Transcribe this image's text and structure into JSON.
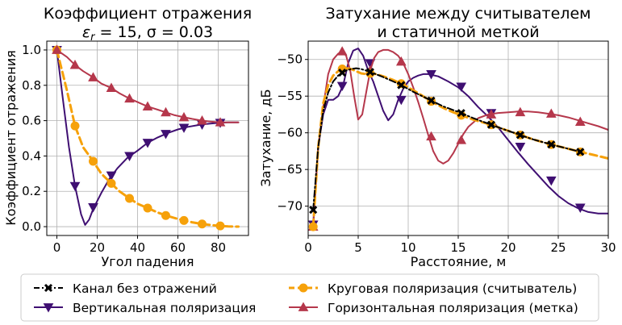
{
  "chart_data": [
    {
      "type": "line",
      "title_line1": "Коэффициент отражения",
      "title_line2_prefix": "ε",
      "title_line2_sub": "r",
      "title_line2_rest": " = 15, σ = 0.03",
      "xlabel": "Угол падения",
      "ylabel": "Коэффициент отражения",
      "xlim": [
        -5,
        95
      ],
      "ylim": [
        -0.05,
        1.05
      ],
      "xticks": [
        0,
        20,
        40,
        60,
        80
      ],
      "yticks": [
        0.0,
        0.2,
        0.4,
        0.6,
        0.8,
        1.0
      ],
      "ytick_labels": [
        "0.0",
        "0.2",
        "0.4",
        "0.6",
        "0.8",
        "1.0"
      ],
      "grid": true,
      "series": [
        {
          "key": "vertical",
          "color": "#3f0f72",
          "style": "solid",
          "marker": "triangle-down",
          "x": [
            0,
            3,
            6,
            9,
            12,
            14,
            16,
            18,
            22,
            26,
            30,
            35,
            40,
            45,
            50,
            55,
            60,
            65,
            70,
            75,
            80,
            85,
            90
          ],
          "y": [
            1.0,
            0.72,
            0.45,
            0.23,
            0.07,
            0.01,
            0.04,
            0.1,
            0.19,
            0.27,
            0.33,
            0.39,
            0.43,
            0.475,
            0.505,
            0.53,
            0.55,
            0.565,
            0.575,
            0.582,
            0.587,
            0.59,
            0.59
          ],
          "markers_x": [
            0,
            9,
            18,
            27,
            36,
            45,
            54,
            63,
            72,
            81
          ],
          "markers_y": [
            1.0,
            0.23,
            0.11,
            0.29,
            0.4,
            0.475,
            0.525,
            0.56,
            0.578,
            0.588
          ]
        },
        {
          "key": "circular",
          "color": "#f6a10a",
          "style": "dashed",
          "marker": "circle",
          "x": [
            0,
            5,
            9,
            13,
            18,
            22,
            27,
            31,
            36,
            40,
            45,
            50,
            54,
            58,
            63,
            67,
            72,
            76,
            81,
            85,
            90
          ],
          "y": [
            1.0,
            0.77,
            0.57,
            0.45,
            0.37,
            0.3,
            0.245,
            0.2,
            0.16,
            0.13,
            0.105,
            0.08,
            0.063,
            0.05,
            0.035,
            0.025,
            0.015,
            0.01,
            0.004,
            0.001,
            0.0
          ],
          "markers_x": [
            0,
            9,
            18,
            27,
            36,
            45,
            54,
            63,
            72,
            81
          ],
          "markers_y": [
            1.0,
            0.57,
            0.37,
            0.245,
            0.16,
            0.105,
            0.063,
            0.035,
            0.015,
            0.004
          ]
        },
        {
          "key": "horizontal",
          "color": "#b5374b",
          "style": "solid",
          "marker": "triangle-up",
          "x": [
            0,
            5,
            9,
            13,
            18,
            22,
            27,
            31,
            36,
            40,
            45,
            50,
            54,
            58,
            63,
            67,
            72,
            76,
            81,
            85,
            90
          ],
          "y": [
            1.0,
            0.96,
            0.915,
            0.88,
            0.845,
            0.81,
            0.785,
            0.755,
            0.725,
            0.705,
            0.68,
            0.662,
            0.647,
            0.632,
            0.619,
            0.61,
            0.6,
            0.595,
            0.59,
            0.59,
            0.59
          ],
          "markers_x": [
            0,
            9,
            18,
            27,
            36,
            45,
            54,
            63,
            72,
            81
          ],
          "markers_y": [
            1.0,
            0.915,
            0.845,
            0.785,
            0.725,
            0.68,
            0.647,
            0.619,
            0.6,
            0.59
          ]
        }
      ]
    },
    {
      "type": "line",
      "title_line1": "Затухание между считывателем",
      "title_line2": "и статичной меткой",
      "xlabel": "Расстояние, м",
      "ylabel": "Затухание, дБ",
      "xlim": [
        0,
        30
      ],
      "ylim": [
        -74,
        -47.5
      ],
      "xticks": [
        0,
        5,
        10,
        15,
        20,
        25,
        30
      ],
      "yticks": [
        -70,
        -65,
        -60,
        -55,
        -50
      ],
      "ytick_labels": [
        "−70",
        "−65",
        "−60",
        "−55",
        "−50"
      ],
      "grid": true,
      "series": [
        {
          "key": "vertical",
          "color": "#3f0f72",
          "style": "solid",
          "marker": "triangle-down",
          "x": [
            0.5,
            1.0,
            1.5,
            2.0,
            2.5,
            3.0,
            3.5,
            4.0,
            4.5,
            5.0,
            5.5,
            6.0,
            6.5,
            7.0,
            7.5,
            8.0,
            8.5,
            9.0,
            9.5,
            10.0,
            10.5,
            11.0,
            11.5,
            12.0,
            13.0,
            14.0,
            15.0,
            16.0,
            17.0,
            18.0,
            19.0,
            20.0,
            21.0,
            22.0,
            23.0,
            24.0,
            25.0,
            26.0,
            27.0,
            28.0,
            29.0,
            30.0
          ],
          "y": [
            -72.5,
            -62.0,
            -57.5,
            -55.5,
            -55.5,
            -55.0,
            -53.5,
            -50.5,
            -48.8,
            -48.5,
            -49.5,
            -51.5,
            -53.0,
            -55.0,
            -57.0,
            -58.3,
            -57.5,
            -55.5,
            -54.0,
            -53.0,
            -52.5,
            -52.2,
            -52.0,
            -52.0,
            -52.3,
            -53.0,
            -53.8,
            -55.0,
            -56.5,
            -57.8,
            -59.3,
            -61.0,
            -62.7,
            -64.3,
            -65.8,
            -67.3,
            -68.6,
            -69.6,
            -70.3,
            -70.8,
            -71.0,
            -71.0
          ],
          "markers_x": [
            0.5,
            3.4,
            6.2,
            9.3,
            12.3,
            15.3,
            18.3,
            21.2,
            24.3,
            27.2
          ],
          "markers_y": [
            -72.5,
            -53.6,
            -50.5,
            -55.5,
            -52.0,
            -53.7,
            -57.3,
            -61.9,
            -66.5,
            -70.2
          ]
        },
        {
          "key": "horizontal",
          "color": "#b5374b",
          "style": "solid",
          "marker": "triangle-up",
          "x": [
            0.5,
            1.0,
            1.5,
            2.0,
            2.5,
            3.0,
            3.4,
            3.8,
            4.2,
            4.6,
            5.0,
            5.4,
            5.8,
            6.2,
            6.6,
            7.0,
            7.5,
            8.0,
            8.5,
            9.0,
            9.5,
            10.0,
            10.5,
            11.0,
            11.5,
            12.0,
            12.5,
            13.0,
            13.5,
            14.0,
            14.5,
            15.0,
            15.5,
            16.0,
            17.0,
            18.0,
            19.0,
            20.0,
            21.0,
            22.0,
            23.0,
            24.0,
            25.0,
            26.0,
            27.0,
            28.0,
            29.0,
            30.0
          ],
          "y": [
            -72.8,
            -62.0,
            -56.5,
            -52.0,
            -50.0,
            -49.2,
            -48.9,
            -49.5,
            -51.5,
            -55.0,
            -58.2,
            -57.5,
            -54.5,
            -51.5,
            -49.8,
            -49.0,
            -48.7,
            -48.7,
            -49.0,
            -49.5,
            -50.5,
            -52.0,
            -53.8,
            -55.8,
            -58.0,
            -60.3,
            -62.5,
            -63.8,
            -64.2,
            -63.8,
            -62.8,
            -61.5,
            -60.2,
            -59.2,
            -58.0,
            -57.5,
            -57.3,
            -57.2,
            -57.1,
            -57.1,
            -57.2,
            -57.4,
            -57.6,
            -57.9,
            -58.3,
            -58.7,
            -59.1,
            -59.6
          ],
          "markers_x": [
            0.5,
            3.4,
            6.2,
            9.3,
            12.3,
            15.3,
            18.3,
            21.2,
            24.3,
            27.2
          ],
          "markers_y": [
            -72.8,
            -48.9,
            -51.5,
            -50.3,
            -60.5,
            -61.0,
            -57.5,
            -57.2,
            -57.4,
            -58.5
          ]
        },
        {
          "key": "circular",
          "color": "#f6a10a",
          "style": "dashed",
          "marker": "circle",
          "x": [
            0.5,
            1.0,
            1.5,
            2.0,
            2.5,
            3.0,
            3.4,
            3.8,
            4.3,
            4.8,
            5.3,
            5.8,
            6.2,
            6.8,
            7.5,
            8.5,
            9.3,
            10.0,
            11.0,
            12.3,
            13.5,
            14.5,
            15.3,
            16.5,
            18.3,
            19.5,
            21.2,
            22.5,
            24.3,
            25.5,
            27.2,
            28.5,
            30.0
          ],
          "y": [
            -72.8,
            -62.0,
            -56.0,
            -53.5,
            -52.2,
            -51.6,
            -51.3,
            -51.2,
            -51.3,
            -51.6,
            -51.9,
            -52.0,
            -51.9,
            -52.0,
            -52.3,
            -52.8,
            -53.3,
            -53.8,
            -54.6,
            -55.7,
            -56.6,
            -57.2,
            -57.6,
            -58.2,
            -58.9,
            -59.5,
            -60.3,
            -60.9,
            -61.6,
            -62.0,
            -62.6,
            -63.0,
            -63.5
          ],
          "markers_x": [
            0.5,
            3.4,
            6.2,
            9.3,
            12.3,
            15.3,
            18.3,
            21.2,
            24.3,
            27.2
          ],
          "markers_y": [
            -72.8,
            -51.3,
            -51.9,
            -53.3,
            -55.7,
            -57.6,
            -58.9,
            -60.3,
            -61.6,
            -62.6
          ]
        },
        {
          "key": "free",
          "color": "#000000",
          "style": "dashdot",
          "marker": "x",
          "x": [
            0.5,
            1.0,
            1.5,
            2.0,
            2.5,
            3.0,
            3.4,
            3.8,
            4.3,
            4.8,
            5.3,
            6.2,
            7.5,
            8.5,
            9.3,
            10.5,
            12.3,
            13.5,
            15.3,
            16.5,
            18.3,
            19.5,
            21.2,
            22.5,
            24.3,
            25.5,
            27.2
          ],
          "y": [
            -70.5,
            -62.0,
            -57.0,
            -54.5,
            -53.0,
            -52.2,
            -51.8,
            -51.5,
            -51.3,
            -51.2,
            -51.3,
            -51.7,
            -52.4,
            -53.0,
            -53.5,
            -54.4,
            -55.6,
            -56.4,
            -57.3,
            -58.0,
            -58.9,
            -59.5,
            -60.3,
            -60.9,
            -61.6,
            -62.0,
            -62.6
          ],
          "markers_x": [
            0.5,
            3.4,
            6.2,
            9.3,
            12.3,
            15.3,
            18.3,
            21.2,
            24.3,
            27.2
          ],
          "markers_y": [
            -70.5,
            -51.8,
            -51.7,
            -53.5,
            -55.6,
            -57.3,
            -58.9,
            -60.3,
            -61.6,
            -62.6
          ]
        }
      ]
    }
  ],
  "legend": [
    {
      "key": "free",
      "label": "Канал без отражений",
      "color": "#000000",
      "style": "dashdot",
      "marker": "x"
    },
    {
      "key": "vertical",
      "label": "Вертикальная поляризация",
      "color": "#3f0f72",
      "style": "solid",
      "marker": "triangle-down"
    },
    {
      "key": "circular",
      "label": "Круговая поляризация (считыватель)",
      "color": "#f6a10a",
      "style": "dashed",
      "marker": "circle"
    },
    {
      "key": "horizontal",
      "label": "Горизонтальная поляризация (метка)",
      "color": "#b5374b",
      "style": "solid",
      "marker": "triangle-up"
    }
  ]
}
